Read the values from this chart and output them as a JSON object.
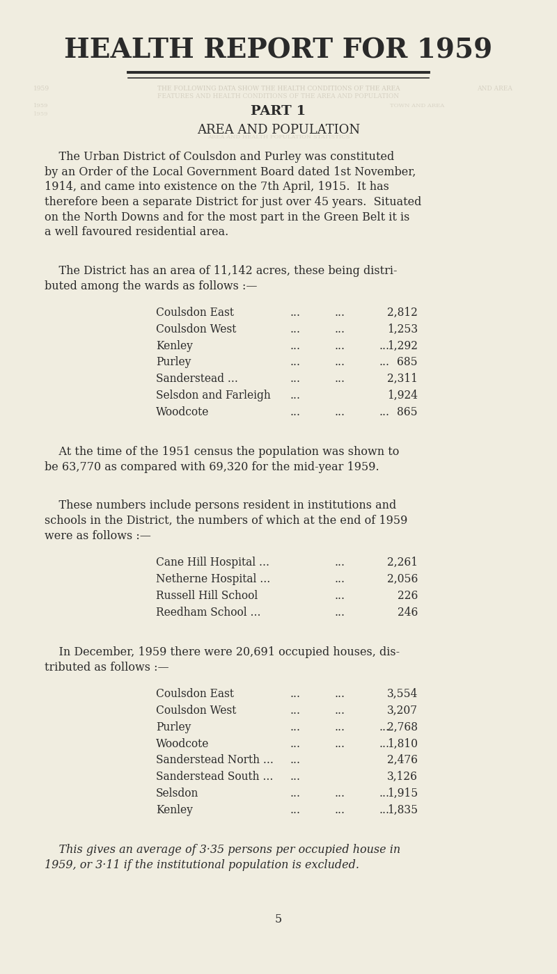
{
  "title": "HEALTH REPORT FOR 1959",
  "part": "PART 1",
  "section": "AREA AND POPULATION",
  "bg_color": "#f0ede0",
  "text_color": "#2a2a2a",
  "ghost_color": "#b8b0a0",
  "paragraph1": "The Urban District of Coulsdon and Purley was constituted by an Order of the Local Government Board dated 1st November, 1914, and came into existence on the 7th April, 1915.  It has therefore been a separate District for just over 45 years.  Situated on the North Downs and for the most part in the Green Belt it is a well favoured residential area.",
  "paragraph2_line1": "The District has an area of 11,142 acres, these being distri-",
  "paragraph2_line2": "buted among the wards as follows :—",
  "wards_display": [
    {
      "name": "Coulsdon East",
      "dots1": "...",
      "dots2": "...",
      "value": "2,812"
    },
    {
      "name": "Coulsdon West",
      "dots1": "...",
      "dots2": "...",
      "value": "1,253"
    },
    {
      "name": "Kenley",
      "dots1": "...",
      "dots2": "...",
      "dots3": "...",
      "value": "1,292"
    },
    {
      "name": "Purley",
      "dots1": "...",
      "dots2": "...",
      "dots3": "...",
      "value": "685"
    },
    {
      "name": "Sanderstead ...",
      "dots1": "...",
      "dots2": "...",
      "value": "2,311"
    },
    {
      "name": "Selsdon and Farleigh",
      "dots1": "...",
      "value": "1,924"
    },
    {
      "name": "Woodcote",
      "dots1": "...",
      "dots2": "...",
      "dots3": "...",
      "value": "865"
    }
  ],
  "paragraph3_line1": "At the time of the 1951 census the population was shown to",
  "paragraph3_line2": "be 63,770 as compared with 69,320 for the mid-year 1959.",
  "paragraph4_line1": "These numbers include persons resident in institutions and",
  "paragraph4_line2": "schools in the District, the numbers of which at the end of 1959",
  "paragraph4_line3": "were as follows :—",
  "institutions": [
    {
      "name": "Cane Hill Hospital ...",
      "dots": "...",
      "value": "2,261"
    },
    {
      "name": "Netherne Hospital ...",
      "dots": "...",
      "value": "2,056"
    },
    {
      "name": "Russell Hill School",
      "dots": "...",
      "value": "226"
    },
    {
      "name": "Reedham School ...",
      "dots": "...",
      "value": "246"
    }
  ],
  "paragraph5_line1": "In December, 1959 there were 20,691 occupied houses, dis-",
  "paragraph5_line2": "tributed as follows :—",
  "houses": [
    {
      "name": "Coulsdon East",
      "dots1": "...",
      "dots2": "...",
      "value": "3,554"
    },
    {
      "name": "Coulsdon West",
      "dots1": "...",
      "dots2": "...",
      "value": "3,207"
    },
    {
      "name": "Purley",
      "dots1": "...",
      "dots2": "...",
      "dots3": "...",
      "value": "2,768"
    },
    {
      "name": "Woodcote",
      "dots1": "...",
      "dots2": "...",
      "dots3": "...",
      "value": "1,810"
    },
    {
      "name": "Sanderstead North ...",
      "dots1": "...",
      "value": "2,476"
    },
    {
      "name": "Sanderstead South ...",
      "dots1": "...",
      "value": "3,126"
    },
    {
      "name": "Selsdon",
      "dots1": "...",
      "dots2": "...",
      "dots3": "...",
      "value": "1,915"
    },
    {
      "name": "Kenley",
      "dots1": "...",
      "dots2": "...",
      "dots3": "...",
      "value": "1,835"
    }
  ],
  "paragraph6_line1": "This gives an average of 3·35 persons per occupied house in",
  "paragraph6_line2": "1959, or 3·11 if the institutional population is excluded.",
  "page_number": "5",
  "font_size_title": 28,
  "font_size_part": 14,
  "font_size_section": 13,
  "font_size_body": 11.5,
  "font_size_table": 11.2,
  "lm": 0.08,
  "rm": 0.92,
  "indent": 0.12,
  "table_col1": 0.28,
  "table_dots1": 0.52,
  "table_dots2": 0.6,
  "table_dots3": 0.68,
  "table_val": 0.75
}
